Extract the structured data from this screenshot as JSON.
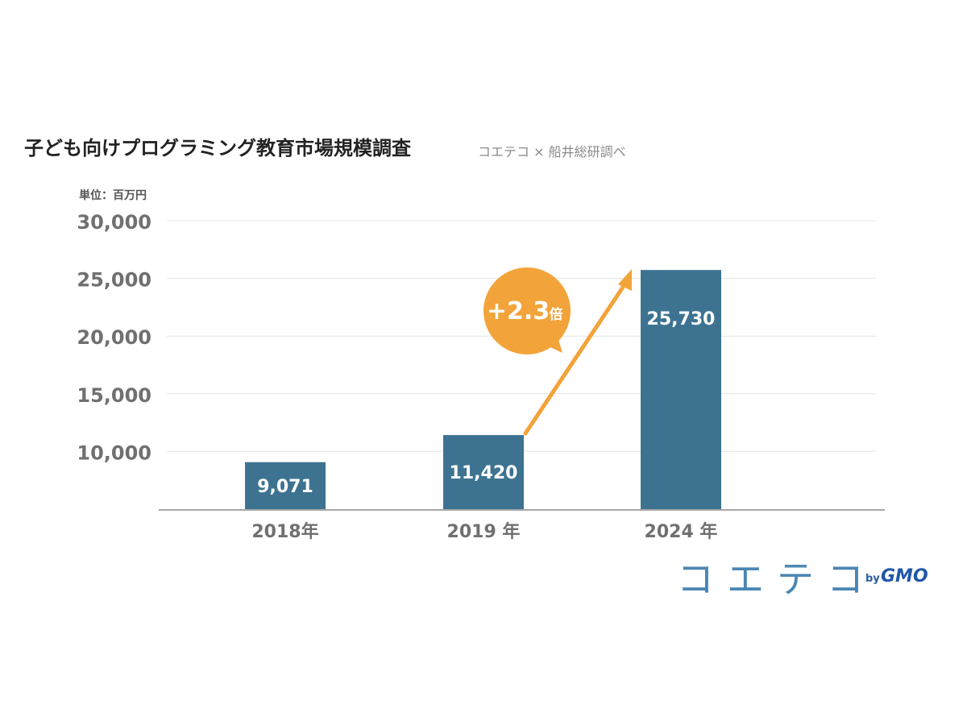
{
  "title": "子ども向けプログラミング教育市場規模調査",
  "source": "コエテコ × 船井総研調べ",
  "unit_label": "単位：百万円",
  "callout": {
    "number": "+2.3",
    "unit": "倍"
  },
  "logo": {
    "main": "コエテコ",
    "by": "by",
    "brand": "GMO"
  },
  "colors": {
    "bar": "#3d7391",
    "accent": "#f2a43a",
    "grid": "#e3e3e3",
    "axis": "#a6a6a6",
    "tick_text": "#707070"
  },
  "chart_data": {
    "type": "bar",
    "categories": [
      "2018年",
      "2019 年",
      "2024 年"
    ],
    "values": [
      9071,
      11420,
      25730
    ],
    "value_labels": [
      "9,071",
      "11,420",
      "25,730"
    ],
    "ylim": [
      5000,
      30000
    ],
    "yticks": [
      10000,
      15000,
      20000,
      25000,
      30000
    ],
    "ytick_labels": [
      "10,000",
      "15,000",
      "20,000",
      "25,000",
      "30,000"
    ],
    "grid": true
  }
}
